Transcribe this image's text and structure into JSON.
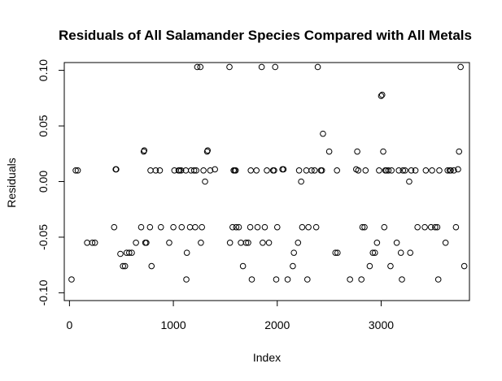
{
  "chart_data": {
    "type": "scatter",
    "title": "Residuals of All Salamander Species Compared with All Metals",
    "xlabel": "Index",
    "ylabel": "Residuals",
    "xlim": [
      -50,
      3850
    ],
    "ylim": [
      -0.107,
      0.107
    ],
    "x_ticks": [
      0,
      1000,
      2000,
      3000
    ],
    "x_tick_labels": [
      "0",
      "1000",
      "2000",
      "3000"
    ],
    "y_ticks": [
      -0.1,
      -0.05,
      0.0,
      0.05,
      0.1
    ],
    "y_tick_labels": [
      "-0.10",
      "-0.05",
      "0.00",
      "0.05",
      "0.10"
    ],
    "grid": false,
    "legend": "none",
    "marker": "open-circle",
    "points": [
      [
        20,
        -0.088
      ],
      [
        60,
        0.01
      ],
      [
        80,
        0.01
      ],
      [
        170,
        -0.055
      ],
      [
        220,
        -0.055
      ],
      [
        245,
        -0.055
      ],
      [
        430,
        -0.041
      ],
      [
        445,
        0.011
      ],
      [
        450,
        0.011
      ],
      [
        490,
        -0.065
      ],
      [
        515,
        -0.076
      ],
      [
        535,
        -0.076
      ],
      [
        550,
        -0.064
      ],
      [
        575,
        -0.064
      ],
      [
        600,
        -0.064
      ],
      [
        640,
        -0.055
      ],
      [
        690,
        -0.041
      ],
      [
        715,
        0.027
      ],
      [
        720,
        0.028
      ],
      [
        730,
        -0.055
      ],
      [
        740,
        -0.055
      ],
      [
        775,
        -0.041
      ],
      [
        780,
        0.01
      ],
      [
        790,
        -0.076
      ],
      [
        830,
        0.01
      ],
      [
        870,
        0.01
      ],
      [
        880,
        -0.041
      ],
      [
        960,
        -0.055
      ],
      [
        1000,
        -0.041
      ],
      [
        1010,
        0.01
      ],
      [
        1050,
        0.01
      ],
      [
        1060,
        0.01
      ],
      [
        1075,
        0.01
      ],
      [
        1080,
        -0.041
      ],
      [
        1120,
        0.01
      ],
      [
        1125,
        -0.088
      ],
      [
        1130,
        -0.064
      ],
      [
        1160,
        -0.041
      ],
      [
        1170,
        0.01
      ],
      [
        1200,
        0.01
      ],
      [
        1210,
        -0.041
      ],
      [
        1220,
        0.01
      ],
      [
        1230,
        0.103
      ],
      [
        1260,
        0.103
      ],
      [
        1265,
        -0.055
      ],
      [
        1275,
        -0.041
      ],
      [
        1290,
        0.01
      ],
      [
        1305,
        0.0
      ],
      [
        1325,
        0.027
      ],
      [
        1330,
        0.028
      ],
      [
        1355,
        0.01
      ],
      [
        1400,
        0.011
      ],
      [
        1540,
        0.103
      ],
      [
        1545,
        -0.055
      ],
      [
        1570,
        -0.041
      ],
      [
        1580,
        0.01
      ],
      [
        1590,
        0.01
      ],
      [
        1600,
        0.01
      ],
      [
        1605,
        -0.041
      ],
      [
        1630,
        -0.041
      ],
      [
        1650,
        -0.055
      ],
      [
        1670,
        -0.076
      ],
      [
        1700,
        -0.055
      ],
      [
        1720,
        -0.055
      ],
      [
        1740,
        -0.041
      ],
      [
        1745,
        0.01
      ],
      [
        1755,
        -0.088
      ],
      [
        1800,
        0.01
      ],
      [
        1810,
        -0.041
      ],
      [
        1850,
        0.103
      ],
      [
        1860,
        -0.055
      ],
      [
        1880,
        -0.041
      ],
      [
        1900,
        0.01
      ],
      [
        1920,
        -0.055
      ],
      [
        1960,
        0.01
      ],
      [
        1970,
        0.01
      ],
      [
        1980,
        0.103
      ],
      [
        1990,
        -0.088
      ],
      [
        2000,
        -0.041
      ],
      [
        2050,
        0.011
      ],
      [
        2060,
        0.011
      ],
      [
        2100,
        -0.088
      ],
      [
        2150,
        -0.076
      ],
      [
        2160,
        -0.064
      ],
      [
        2200,
        -0.055
      ],
      [
        2210,
        0.01
      ],
      [
        2230,
        0.0
      ],
      [
        2240,
        -0.041
      ],
      [
        2280,
        0.01
      ],
      [
        2290,
        -0.088
      ],
      [
        2300,
        -0.041
      ],
      [
        2330,
        0.01
      ],
      [
        2360,
        0.01
      ],
      [
        2375,
        -0.041
      ],
      [
        2390,
        0.103
      ],
      [
        2420,
        0.01
      ],
      [
        2430,
        0.01
      ],
      [
        2440,
        0.043
      ],
      [
        2500,
        0.027
      ],
      [
        2560,
        -0.064
      ],
      [
        2575,
        0.01
      ],
      [
        2580,
        -0.064
      ],
      [
        2700,
        -0.088
      ],
      [
        2760,
        0.011
      ],
      [
        2770,
        0.027
      ],
      [
        2780,
        0.01
      ],
      [
        2810,
        -0.088
      ],
      [
        2820,
        -0.041
      ],
      [
        2840,
        -0.041
      ],
      [
        2850,
        0.01
      ],
      [
        2890,
        -0.076
      ],
      [
        2920,
        -0.064
      ],
      [
        2940,
        -0.064
      ],
      [
        2960,
        -0.055
      ],
      [
        2980,
        0.01
      ],
      [
        3000,
        0.077
      ],
      [
        3010,
        0.078
      ],
      [
        3020,
        0.027
      ],
      [
        3030,
        -0.041
      ],
      [
        3040,
        0.01
      ],
      [
        3050,
        0.01
      ],
      [
        3070,
        0.01
      ],
      [
        3090,
        -0.076
      ],
      [
        3100,
        0.01
      ],
      [
        3150,
        -0.055
      ],
      [
        3170,
        0.01
      ],
      [
        3190,
        -0.064
      ],
      [
        3200,
        -0.088
      ],
      [
        3210,
        0.01
      ],
      [
        3230,
        0.01
      ],
      [
        3270,
        0.0
      ],
      [
        3280,
        -0.064
      ],
      [
        3290,
        0.01
      ],
      [
        3330,
        0.01
      ],
      [
        3350,
        -0.041
      ],
      [
        3420,
        -0.041
      ],
      [
        3430,
        0.01
      ],
      [
        3480,
        -0.041
      ],
      [
        3490,
        0.01
      ],
      [
        3520,
        -0.041
      ],
      [
        3540,
        -0.041
      ],
      [
        3550,
        -0.088
      ],
      [
        3560,
        0.01
      ],
      [
        3620,
        -0.055
      ],
      [
        3640,
        0.01
      ],
      [
        3660,
        0.01
      ],
      [
        3670,
        0.01
      ],
      [
        3700,
        0.01
      ],
      [
        3720,
        -0.041
      ],
      [
        3740,
        0.011
      ],
      [
        3750,
        0.027
      ],
      [
        3765,
        0.103
      ],
      [
        3800,
        -0.076
      ]
    ]
  }
}
